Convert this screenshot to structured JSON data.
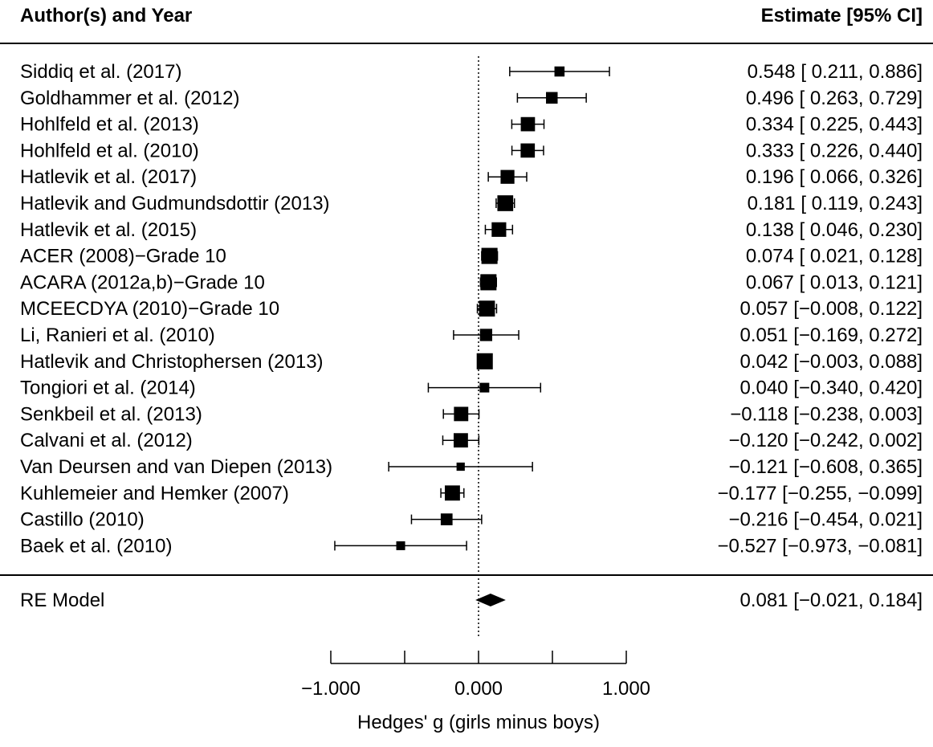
{
  "chart_data": {
    "type": "forest",
    "header_left": "Author(s) and Year",
    "header_right": "Estimate [95% CI]",
    "xlabel": "Hedges' g (girls minus boys)",
    "xlim": [
      -1.0,
      1.0
    ],
    "x_ticks": [
      -1.0,
      -0.5,
      0.0,
      0.5,
      1.0
    ],
    "x_tick_labels": [
      {
        "value": -1.0,
        "label": "−1.000"
      },
      {
        "value": 0.0,
        "label": "0.000"
      },
      {
        "value": 1.0,
        "label": "1.000"
      }
    ],
    "reference_line": 0,
    "studies": [
      {
        "label": "Siddiq et al. (2017)",
        "estimate": 0.548,
        "lower": 0.211,
        "upper": 0.886,
        "text": "0.548 [ 0.211,  0.886]",
        "weight": 1.2
      },
      {
        "label": "Goldhammer et al. (2012)",
        "estimate": 0.496,
        "lower": 0.263,
        "upper": 0.729,
        "text": "0.496 [ 0.263,  0.729]",
        "weight": 2.0
      },
      {
        "label": "Hohlfeld et al. (2013)",
        "estimate": 0.334,
        "lower": 0.225,
        "upper": 0.443,
        "text": "0.334 [ 0.225,  0.443]",
        "weight": 3.8
      },
      {
        "label": "Hohlfeld et al. (2010)",
        "estimate": 0.333,
        "lower": 0.226,
        "upper": 0.44,
        "text": "0.333 [ 0.226,  0.440]",
        "weight": 3.8
      },
      {
        "label": "Hatlevik et al. (2017)",
        "estimate": 0.196,
        "lower": 0.066,
        "upper": 0.326,
        "text": "0.196 [ 0.066,  0.326]",
        "weight": 3.5
      },
      {
        "label": "Hatlevik and Gudmundsdottir (2013)",
        "estimate": 0.181,
        "lower": 0.119,
        "upper": 0.243,
        "text": "0.181 [ 0.119,  0.243]",
        "weight": 5.2
      },
      {
        "label": "Hatlevik et al. (2015)",
        "estimate": 0.138,
        "lower": 0.046,
        "upper": 0.23,
        "text": "0.138 [ 0.046,  0.230]",
        "weight": 4.1
      },
      {
        "label": "ACER (2008)−Grade 10",
        "estimate": 0.074,
        "lower": 0.021,
        "upper": 0.128,
        "text": "0.074 [ 0.021,  0.128]",
        "weight": 5.5
      },
      {
        "label": "ACARA (2012a,b)−Grade 10",
        "estimate": 0.067,
        "lower": 0.013,
        "upper": 0.121,
        "text": "0.067 [ 0.013,  0.121]",
        "weight": 5.5
      },
      {
        "label": "MCEECDYA (2010)−Grade 10",
        "estimate": 0.057,
        "lower": -0.008,
        "upper": 0.122,
        "text": "0.057 [−0.008,  0.122]",
        "weight": 5.3
      },
      {
        "label": "Li, Ranieri et al. (2010)",
        "estimate": 0.051,
        "lower": -0.169,
        "upper": 0.272,
        "text": "0.051 [−0.169,  0.272]",
        "weight": 2.4
      },
      {
        "label": "Hatlevik and Christophersen (2013)",
        "estimate": 0.042,
        "lower": -0.003,
        "upper": 0.088,
        "text": "0.042 [−0.003,  0.088]",
        "weight": 5.5
      },
      {
        "label": "Tongiori et al. (2014)",
        "estimate": 0.04,
        "lower": -0.34,
        "upper": 0.42,
        "text": "0.040 [−0.340,  0.420]",
        "weight": 1.0
      },
      {
        "label": "Senkbeil et al. (2013)",
        "estimate": -0.118,
        "lower": -0.238,
        "upper": 0.003,
        "text": "−0.118 [−0.238,  0.003]",
        "weight": 3.9
      },
      {
        "label": "Calvani et al. (2012)",
        "estimate": -0.12,
        "lower": -0.242,
        "upper": 0.002,
        "text": "−0.120 [−0.242,  0.002]",
        "weight": 3.9
      },
      {
        "label": "Van Deursen and van Diepen (2013)",
        "estimate": -0.121,
        "lower": -0.608,
        "upper": 0.365,
        "text": "−0.121 [−0.608,  0.365]",
        "weight": 0.5
      },
      {
        "label": "Kuhlemeier and Hemker (2007)",
        "estimate": -0.177,
        "lower": -0.255,
        "upper": -0.099,
        "text": "−0.177 [−0.255, −0.099]",
        "weight": 4.6
      },
      {
        "label": "Castillo (2010)",
        "estimate": -0.216,
        "lower": -0.454,
        "upper": 0.021,
        "text": "−0.216 [−0.454,  0.021]",
        "weight": 2.1
      },
      {
        "label": "Baek et al. (2010)",
        "estimate": -0.527,
        "lower": -0.973,
        "upper": -0.081,
        "text": "−0.527 [−0.973, −0.081]",
        "weight": 0.7
      }
    ],
    "summary": {
      "label": "RE Model",
      "estimate": 0.081,
      "lower": -0.021,
      "upper": 0.184,
      "text": "0.081 [−0.021,  0.184]"
    }
  }
}
